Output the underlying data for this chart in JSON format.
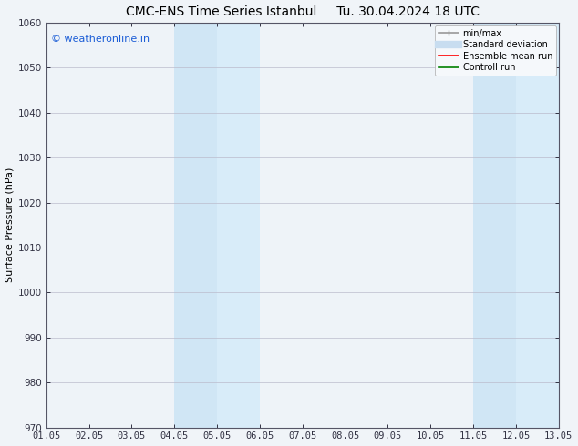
{
  "title_left": "CMC-ENS Time Series Istanbul",
  "title_right": "Tu. 30.04.2024 18 UTC",
  "ylabel": "Surface Pressure (hPa)",
  "ylim": [
    970,
    1060
  ],
  "yticks": [
    970,
    980,
    990,
    1000,
    1010,
    1020,
    1030,
    1040,
    1050,
    1060
  ],
  "xtick_labels": [
    "01.05",
    "02.05",
    "03.05",
    "04.05",
    "05.05",
    "06.05",
    "07.05",
    "08.05",
    "09.05",
    "10.05",
    "11.05",
    "12.05",
    "13.05"
  ],
  "xtick_positions": [
    0,
    1,
    2,
    3,
    4,
    5,
    6,
    7,
    8,
    9,
    10,
    11,
    12
  ],
  "xlim": [
    0,
    12
  ],
  "bg_color": "#f0f4f8",
  "plot_bg_color": "#eef3f8",
  "shaded_bands": [
    {
      "x_start": 3,
      "x_end": 4,
      "color": "#d0e6f5"
    },
    {
      "x_start": 4,
      "x_end": 5,
      "color": "#d8ecf9"
    },
    {
      "x_start": 10,
      "x_end": 11,
      "color": "#d0e6f5"
    },
    {
      "x_start": 11,
      "x_end": 12,
      "color": "#d8ecf9"
    }
  ],
  "watermark_text": "© weatheronline.in",
  "watermark_color": "#1a5cd6",
  "legend_labels": [
    "min/max",
    "Standard deviation",
    "Ensemble mean run",
    "Controll run"
  ],
  "legend_colors": [
    "#999999",
    "#c8ddf0",
    "#ff0000",
    "#008000"
  ],
  "grid_color": "#bbbbcc",
  "title_fontsize": 10,
  "axis_label_fontsize": 8,
  "tick_fontsize": 7.5,
  "legend_fontsize": 7,
  "watermark_fontsize": 8
}
